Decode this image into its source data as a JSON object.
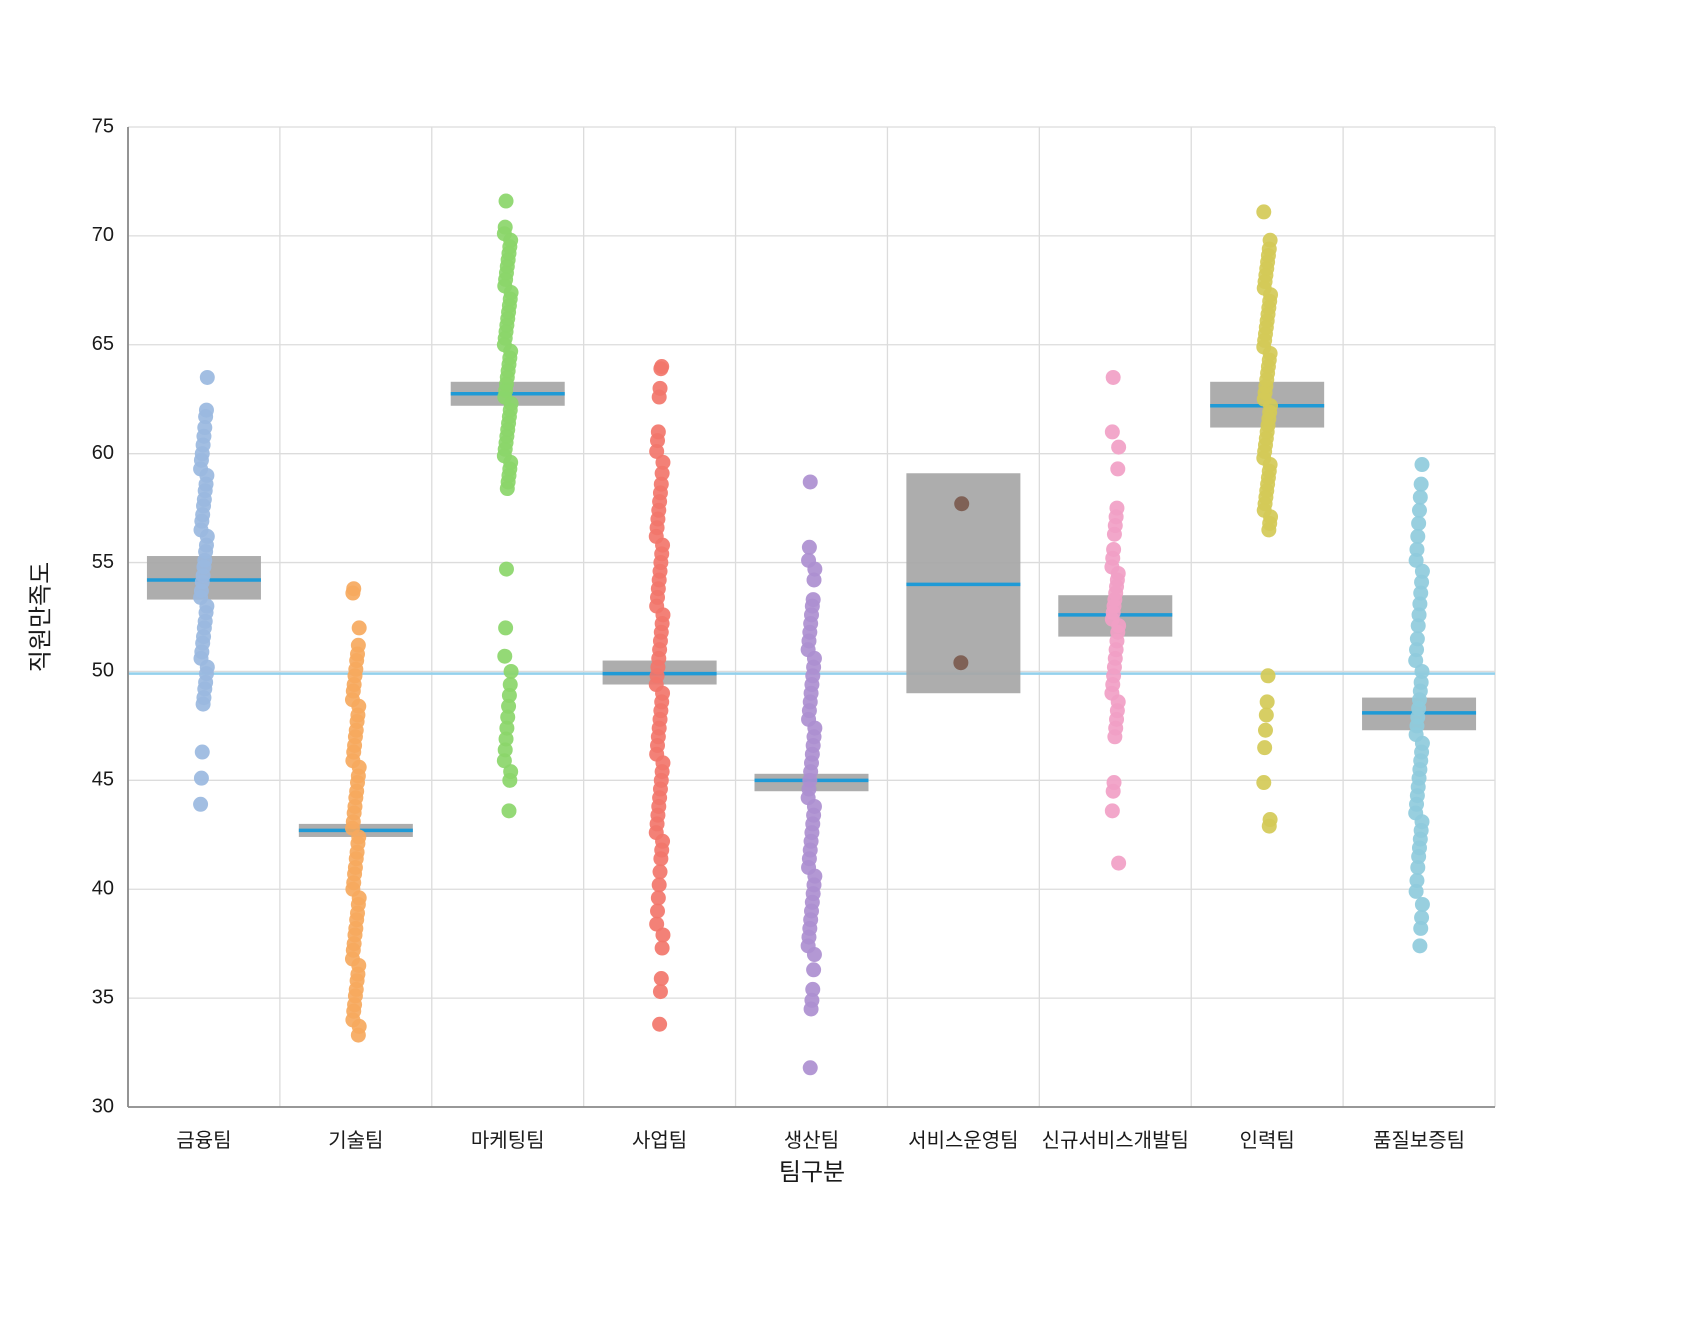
{
  "chart_data": {
    "type": "scatter",
    "subtype": "strip-plot-with-ci",
    "title": "",
    "xlabel": "팀구분",
    "ylabel": "직원만족도",
    "ylim": [
      30,
      75
    ],
    "yticks": [
      30,
      35,
      40,
      45,
      50,
      55,
      60,
      65,
      70,
      75
    ],
    "grid": true,
    "legend": "none",
    "overall_mean": 49.9,
    "colors": {
      "overall_mean_line": "#93d1ed",
      "ci_box": "#a6a6a6",
      "mean_line": "#1f9ad6",
      "gridline": "#dcdcdc",
      "axis_line": "#8a8a8a",
      "tick_text": "#1a1a1a"
    },
    "categories": [
      {
        "label": "금융팀",
        "color": "#9ab8e0",
        "mean": 54.2,
        "ci": [
          53.3,
          55.3
        ],
        "points": [
          43.9,
          45.1,
          46.3,
          48.5,
          48.8,
          49.2,
          49.5,
          49.9,
          50.2,
          50.6,
          50.9,
          51.3,
          51.6,
          52.0,
          52.3,
          52.7,
          53.0,
          53.4,
          53.7,
          54.1,
          54.4,
          54.8,
          55.1,
          55.5,
          55.8,
          56.2,
          56.5,
          56.9,
          57.2,
          57.6,
          57.9,
          58.3,
          58.6,
          59.0,
          59.3,
          59.7,
          60.0,
          60.4,
          60.8,
          61.2,
          61.7,
          62.0,
          63.5
        ]
      },
      {
        "label": "기술팀",
        "color": "#f6a95e",
        "mean": 42.7,
        "ci": [
          42.4,
          43.0
        ],
        "points": [
          33.3,
          33.7,
          34.0,
          34.4,
          34.7,
          35.1,
          35.4,
          35.8,
          36.1,
          36.5,
          36.8,
          37.2,
          37.5,
          37.9,
          38.2,
          38.6,
          38.9,
          39.3,
          39.6,
          40.0,
          40.3,
          40.7,
          41.0,
          41.4,
          41.7,
          42.1,
          42.4,
          42.8,
          43.1,
          43.5,
          43.8,
          44.2,
          44.5,
          44.9,
          45.2,
          45.6,
          45.9,
          46.3,
          46.6,
          47.0,
          47.3,
          47.7,
          48.0,
          48.4,
          48.7,
          49.1,
          49.4,
          49.8,
          50.1,
          50.5,
          50.8,
          51.2,
          52.0,
          53.6,
          53.8
        ]
      },
      {
        "label": "마케팅팀",
        "color": "#8bd66a",
        "mean": 62.75,
        "ci": [
          62.2,
          63.3
        ],
        "points": [
          43.6,
          45.0,
          45.4,
          45.9,
          46.4,
          46.9,
          47.4,
          47.9,
          48.4,
          48.9,
          49.4,
          50.0,
          50.7,
          52.0,
          54.7,
          58.4,
          58.7,
          59.0,
          59.3,
          59.6,
          59.9,
          60.2,
          60.5,
          60.8,
          61.1,
          61.4,
          61.7,
          62.0,
          62.3,
          62.6,
          62.9,
          63.2,
          63.5,
          63.8,
          64.1,
          64.4,
          64.7,
          65.0,
          65.3,
          65.6,
          65.9,
          66.2,
          66.5,
          66.8,
          67.1,
          67.4,
          67.7,
          68.0,
          68.3,
          68.6,
          68.9,
          69.2,
          69.5,
          69.8,
          70.1,
          70.4,
          71.6
        ]
      },
      {
        "label": "사업팀",
        "color": "#f2766b",
        "mean": 49.9,
        "ci": [
          49.4,
          50.5
        ],
        "points": [
          33.8,
          35.3,
          35.9,
          37.3,
          37.9,
          38.4,
          39.0,
          39.6,
          40.2,
          40.8,
          41.4,
          41.8,
          42.2,
          42.6,
          43.0,
          43.4,
          43.8,
          44.2,
          44.6,
          45.0,
          45.4,
          45.8,
          46.2,
          46.6,
          47.0,
          47.4,
          47.8,
          48.2,
          48.6,
          49.0,
          49.4,
          49.8,
          50.2,
          50.6,
          51.0,
          51.4,
          51.8,
          52.2,
          52.6,
          53.0,
          53.4,
          53.8,
          54.2,
          54.6,
          55.0,
          55.4,
          55.8,
          56.2,
          56.6,
          57.0,
          57.4,
          57.8,
          58.2,
          58.6,
          59.1,
          59.6,
          60.1,
          60.6,
          61.0,
          62.6,
          63.0,
          63.9,
          64.0
        ]
      },
      {
        "label": "생산팀",
        "color": "#ad8fd0",
        "mean": 45.0,
        "ci": [
          44.5,
          45.3
        ],
        "points": [
          31.8,
          34.5,
          34.9,
          35.4,
          36.3,
          37.0,
          37.4,
          37.8,
          38.2,
          38.6,
          39.0,
          39.4,
          39.8,
          40.2,
          40.6,
          41.0,
          41.4,
          41.8,
          42.2,
          42.6,
          43.0,
          43.4,
          43.8,
          44.2,
          44.6,
          45.0,
          45.4,
          45.8,
          46.2,
          46.6,
          47.0,
          47.4,
          47.8,
          48.2,
          48.6,
          49.0,
          49.4,
          49.8,
          50.2,
          50.6,
          51.0,
          51.4,
          51.8,
          52.2,
          52.6,
          53.0,
          53.3,
          54.2,
          54.7,
          55.1,
          55.7,
          58.7
        ]
      },
      {
        "label": "서비스운영팀",
        "color": "#7b5a4e",
        "mean": 54.0,
        "ci": [
          49.0,
          59.1
        ],
        "points": [
          50.4,
          57.7
        ]
      },
      {
        "label": "신규서비스개발팀",
        "color": "#f1a0c6",
        "mean": 52.6,
        "ci": [
          51.6,
          53.5
        ],
        "points": [
          41.2,
          43.6,
          44.5,
          44.9,
          47.0,
          47.4,
          47.8,
          48.2,
          48.6,
          49.0,
          49.4,
          49.8,
          50.2,
          50.6,
          51.0,
          51.4,
          51.8,
          52.1,
          52.4,
          52.7,
          53.0,
          53.3,
          53.6,
          53.9,
          54.2,
          54.5,
          54.8,
          55.2,
          55.6,
          56.3,
          56.7,
          57.1,
          57.5,
          59.3,
          60.3,
          61.0,
          63.5
        ]
      },
      {
        "label": "인력팀",
        "color": "#d4ca57",
        "mean": 62.2,
        "ci": [
          61.2,
          63.3
        ],
        "points": [
          42.9,
          43.2,
          44.9,
          46.5,
          47.3,
          48.0,
          48.6,
          49.8,
          56.5,
          56.8,
          57.1,
          57.4,
          57.7,
          58.0,
          58.3,
          58.6,
          58.9,
          59.2,
          59.5,
          59.8,
          60.1,
          60.4,
          60.7,
          61.0,
          61.3,
          61.6,
          61.9,
          62.2,
          62.5,
          62.8,
          63.1,
          63.4,
          63.7,
          64.0,
          64.3,
          64.6,
          64.9,
          65.2,
          65.5,
          65.8,
          66.1,
          66.4,
          66.7,
          67.0,
          67.3,
          67.6,
          67.9,
          68.2,
          68.5,
          68.8,
          69.1,
          69.4,
          69.8,
          71.1
        ]
      },
      {
        "label": "품질보증팀",
        "color": "#8fcbdc",
        "mean": 48.1,
        "ci": [
          47.3,
          48.8
        ],
        "points": [
          37.4,
          38.2,
          38.7,
          39.3,
          39.9,
          40.4,
          41.0,
          41.5,
          41.9,
          42.3,
          42.7,
          43.1,
          43.5,
          43.9,
          44.3,
          44.7,
          45.1,
          45.5,
          45.9,
          46.3,
          46.7,
          47.1,
          47.5,
          47.9,
          48.3,
          48.7,
          49.1,
          49.5,
          50.0,
          50.5,
          51.0,
          51.5,
          52.1,
          52.6,
          53.1,
          53.6,
          54.1,
          54.6,
          55.1,
          55.6,
          56.2,
          56.8,
          57.4,
          58.0,
          58.6,
          59.5
        ]
      }
    ]
  }
}
